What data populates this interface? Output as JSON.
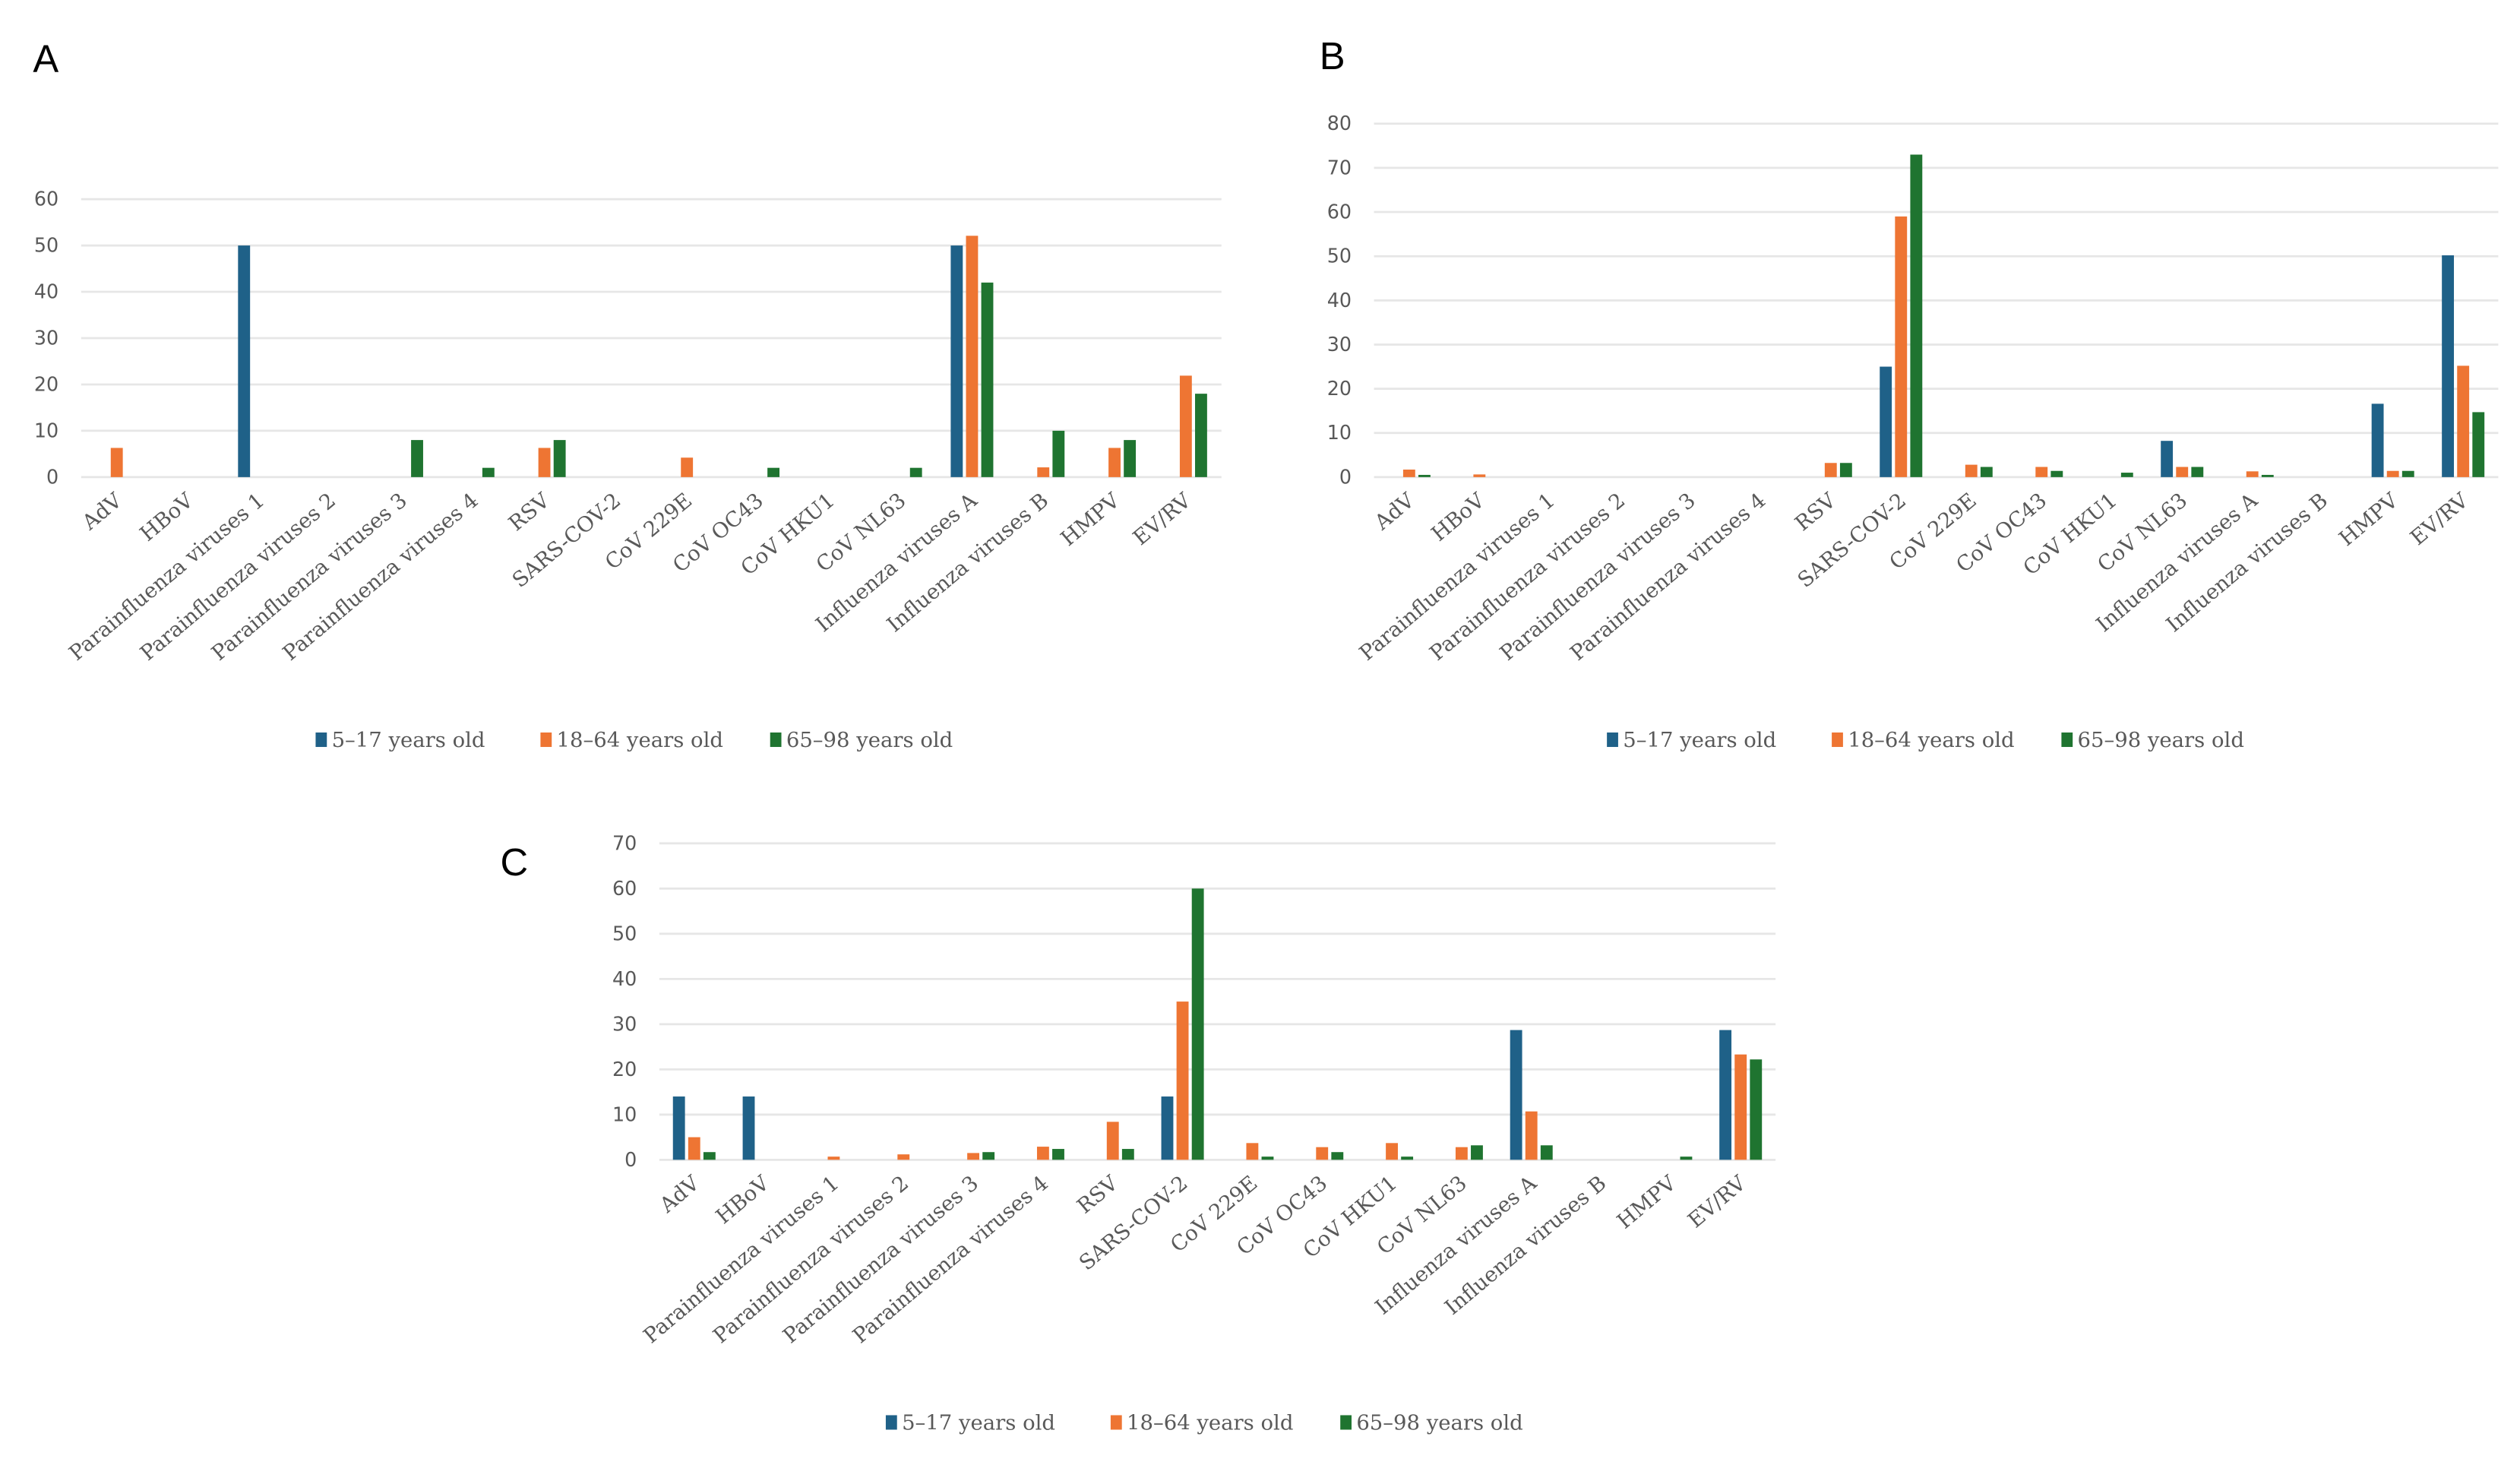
{
  "colors": {
    "s1": "#1f6188",
    "s2": "#ee7533",
    "s3": "#1f7430",
    "grid": "#e6e6e6"
  },
  "chart_data": [
    {
      "type": "bar",
      "panel": "A",
      "title": "",
      "xlabel": "",
      "ylabel": "",
      "ylim": [
        0,
        60
      ],
      "yticks": [
        0,
        10,
        20,
        30,
        40,
        50,
        60
      ],
      "grid": true,
      "legend": "bottom",
      "categories": [
        "AdV",
        "HBoV",
        "Parainfluenza viruses 1",
        "Parainfluenza viruses 2",
        "Parainfluenza viruses 3",
        "Parainfluenza viruses 4",
        "RSV",
        "SARS-COV-2",
        "CoV 229E",
        "CoV OC43",
        "CoV HKU1",
        "CoV NL63",
        "Influenza viruses A",
        "Influenza viruses B",
        "HMPV",
        "EV/RV"
      ],
      "series": [
        {
          "name": "5–17 years old",
          "values": [
            0,
            0,
            50,
            0,
            0,
            0,
            0,
            0,
            0,
            0,
            0,
            0,
            50,
            0,
            0,
            0
          ]
        },
        {
          "name": "18–64 years old",
          "values": [
            6.3,
            0,
            0,
            0,
            0,
            0,
            6.3,
            0,
            4.2,
            0,
            0,
            0,
            52.1,
            2.1,
            6.3,
            21.9
          ]
        },
        {
          "name": "65–98 years old",
          "values": [
            0,
            0,
            0,
            0,
            8,
            2,
            8,
            0,
            0,
            2,
            0,
            2,
            42,
            10,
            8,
            18
          ]
        }
      ]
    },
    {
      "type": "bar",
      "panel": "B",
      "title": "",
      "xlabel": "",
      "ylabel": "",
      "ylim": [
        0,
        80
      ],
      "yticks": [
        0,
        10,
        20,
        30,
        40,
        50,
        60,
        70,
        80
      ],
      "grid": true,
      "legend": "bottom",
      "categories": [
        "AdV",
        "HBoV",
        "Parainfluenza viruses 1",
        "Parainfluenza viruses 2",
        "Parainfluenza viruses 3",
        "Parainfluenza viruses 4",
        "RSV",
        "SARS-COV-2",
        "CoV 229E",
        "CoV OC43",
        "CoV HKU1",
        "CoV NL63",
        "Influenza viruses A",
        "Influenza viruses B",
        "HMPV",
        "EV/RV"
      ],
      "series": [
        {
          "name": "5–17 years old",
          "values": [
            0,
            0,
            0,
            0,
            0,
            0,
            0,
            25,
            0,
            0,
            0,
            8.2,
            0,
            0,
            16.6,
            50.2
          ]
        },
        {
          "name": "18–64 years old",
          "values": [
            1.7,
            0.6,
            0,
            0,
            0,
            0,
            3.2,
            59,
            2.8,
            2.3,
            0,
            2.3,
            1.3,
            0,
            1.4,
            25.2
          ]
        },
        {
          "name": "65–98 years old",
          "values": [
            0.5,
            0,
            0,
            0,
            0,
            0,
            3.2,
            73,
            2.3,
            1.4,
            1,
            2.3,
            0.5,
            0,
            1.4,
            14.7
          ]
        }
      ]
    },
    {
      "type": "bar",
      "panel": "C",
      "title": "",
      "xlabel": "",
      "ylabel": "",
      "ylim": [
        0,
        70
      ],
      "yticks": [
        0,
        10,
        20,
        30,
        40,
        50,
        60,
        70
      ],
      "grid": true,
      "legend": "bottom",
      "categories": [
        "AdV",
        "HBoV",
        "Parainfluenza viruses 1",
        "Parainfluenza viruses 2",
        "Parainfluenza viruses 3",
        "Parainfluenza viruses 4",
        "RSV",
        "SARS-COV-2",
        "CoV 229E",
        "CoV OC43",
        "CoV HKU1",
        "CoV NL63",
        "Influenza viruses A",
        "Influenza viruses B",
        "HMPV",
        "EV/RV"
      ],
      "series": [
        {
          "name": "5–17 years old",
          "values": [
            14,
            14,
            0,
            0,
            0,
            0,
            0,
            14,
            0,
            0,
            0,
            0,
            28.7,
            0,
            0,
            28.7
          ]
        },
        {
          "name": "18–64 years old",
          "values": [
            5,
            0,
            0.7,
            1.2,
            1.5,
            2.9,
            8.4,
            35,
            3.7,
            2.8,
            3.7,
            2.8,
            10.7,
            0,
            0,
            23.3
          ]
        },
        {
          "name": "65–98 years old",
          "values": [
            1.7,
            0,
            0,
            0,
            1.7,
            2.4,
            2.4,
            60,
            0.7,
            1.7,
            0.7,
            3.2,
            3.2,
            0,
            0.7,
            22.2
          ]
        }
      ]
    }
  ]
}
